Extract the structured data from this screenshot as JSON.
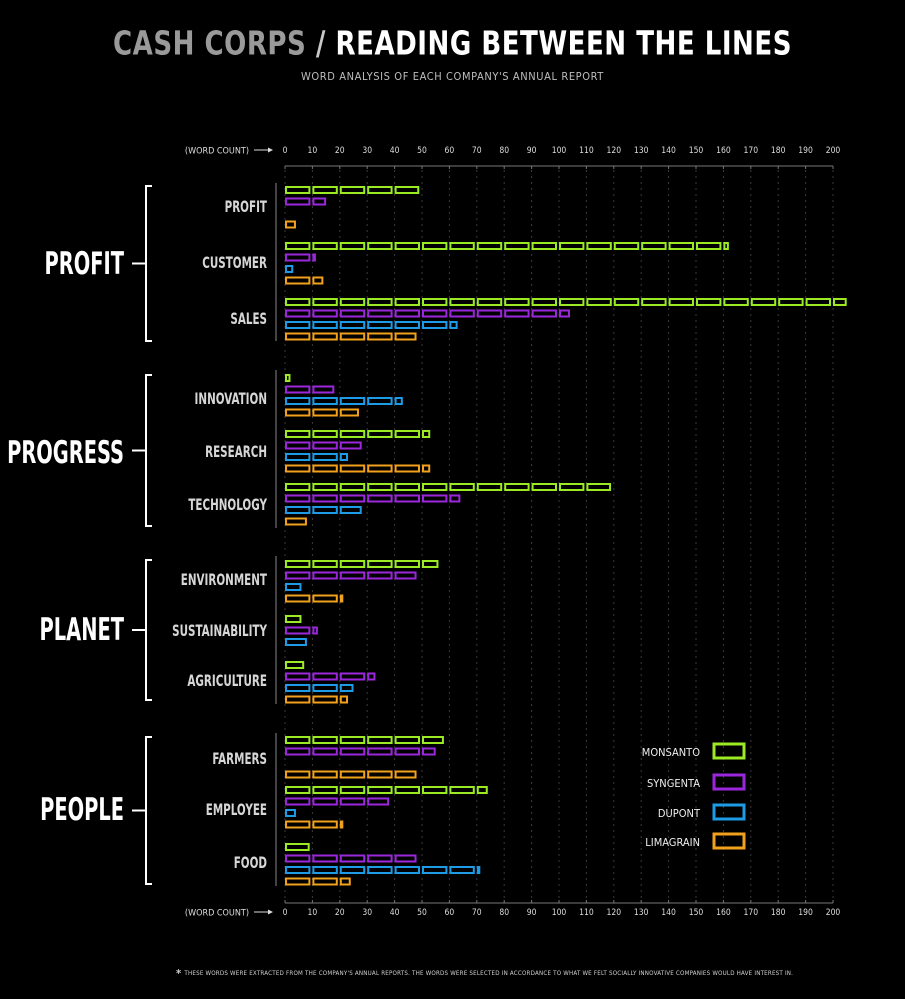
{
  "title": {
    "part1": "CASH CORPS",
    "separator": " / ",
    "part2": "READING BETWEEN THE LINES"
  },
  "subtitle": "WORD ANALYSIS OF EACH COMPANY'S ANNUAL REPORT",
  "footnote": {
    "marker": "*",
    "text": "THESE WORDS WERE EXTRACTED FROM THE COMPANY'S ANNUAL REPORTS. THE WORDS WERE SELECTED IN ACCORDANCE TO WHAT WE FELT SOCIALLY INNOVATIVE COMPANIES WOULD HAVE INTEREST IN."
  },
  "chart_data": {
    "type": "bar",
    "orientation": "horizontal",
    "xlabel": "(WORD COUNT)",
    "xlim": [
      0,
      200
    ],
    "xticks": [
      0,
      10,
      20,
      30,
      40,
      50,
      60,
      70,
      80,
      90,
      100,
      110,
      120,
      130,
      140,
      150,
      160,
      170,
      180,
      190,
      200
    ],
    "grid": true,
    "legend_position": "right",
    "series": [
      {
        "name": "MONSANTO",
        "color": "#9BEA23"
      },
      {
        "name": "SYNGENTA",
        "color": "#9B27DC"
      },
      {
        "name": "DUPONT",
        "color": "#1E9BE6"
      },
      {
        "name": "LIMAGRAIN",
        "color": "#F2A11C"
      }
    ],
    "groups": [
      {
        "name": "PROFIT",
        "words": [
          {
            "word": "PROFIT",
            "values": [
              49,
              15,
              0,
              4
            ]
          },
          {
            "word": "CUSTOMER",
            "values": [
              162,
              11,
              3,
              14
            ]
          },
          {
            "word": "SALES",
            "values": [
              205,
              104,
              63,
              48
            ]
          }
        ]
      },
      {
        "name": "PROGRESS",
        "words": [
          {
            "word": "INNOVATION",
            "values": [
              2,
              18,
              43,
              27
            ]
          },
          {
            "word": "RESEARCH",
            "values": [
              53,
              28,
              23,
              53
            ]
          },
          {
            "word": "TECHNOLOGY",
            "values": [
              119,
              64,
              28,
              8
            ]
          }
        ]
      },
      {
        "name": "PLANET",
        "words": [
          {
            "word": "ENVIRONMENT",
            "values": [
              56,
              48,
              6,
              21
            ]
          },
          {
            "word": "SUSTAINABILITY",
            "values": [
              6,
              12,
              8,
              0
            ]
          },
          {
            "word": "AGRICULTURE",
            "values": [
              7,
              33,
              25,
              23
            ]
          }
        ]
      },
      {
        "name": "PEOPLE",
        "words": [
          {
            "word": "FARMERS",
            "values": [
              58,
              55,
              0,
              48
            ]
          },
          {
            "word": "EMPLOYEE",
            "values": [
              74,
              38,
              4,
              21
            ]
          },
          {
            "word": "FOOD",
            "values": [
              9,
              48,
              71,
              24
            ]
          }
        ]
      }
    ]
  }
}
